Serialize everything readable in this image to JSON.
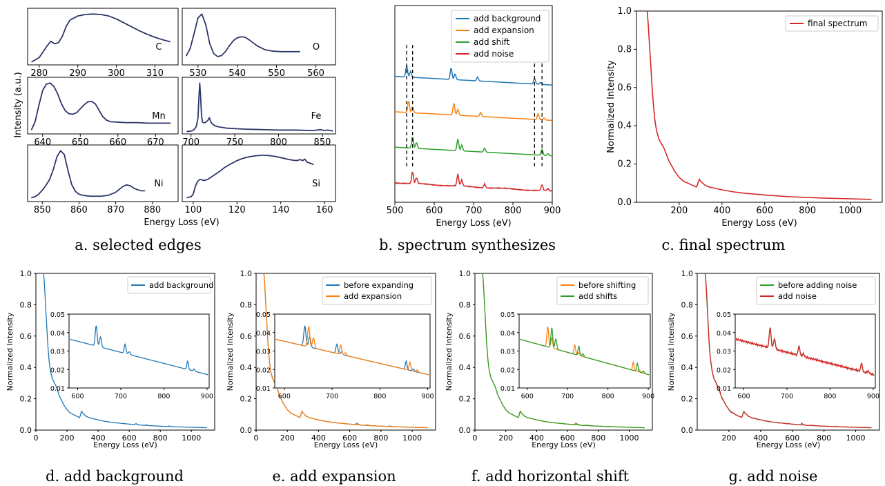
{
  "colors": {
    "navy": "#2c3468",
    "blue": "#1f77b4",
    "orange": "#ff7f0e",
    "green": "#2ca02c",
    "red": "#d62728"
  },
  "captions": {
    "a": "a. selected edges",
    "b": "b. spectrum synthesizes",
    "c": "c. final spectrum",
    "d": "d. add background",
    "e": "e. add expansion",
    "f": "f. add horizontal shift",
    "g": "g. add noise"
  },
  "chart_data": [
    {
      "id": "a",
      "type": "line",
      "title": "a. selected edges",
      "xlabel": "Energy Loss (eV)",
      "ylabel": "Intensity (a.u.)",
      "panels": [
        {
          "label": "C",
          "xlim": [
            277,
            316
          ],
          "xticks": [
            280,
            290,
            300,
            310
          ],
          "x": [
            278,
            280,
            282,
            283,
            284,
            285,
            286,
            287,
            288,
            290,
            292,
            294,
            296,
            298,
            300,
            302,
            304,
            306,
            308,
            310,
            312,
            314
          ],
          "y": [
            0.03,
            0.12,
            0.35,
            0.45,
            0.4,
            0.42,
            0.55,
            0.75,
            0.88,
            0.96,
            0.99,
            1.0,
            0.99,
            0.96,
            0.9,
            0.82,
            0.74,
            0.66,
            0.59,
            0.53,
            0.48,
            0.44
          ]
        },
        {
          "label": "O",
          "xlim": [
            526,
            565
          ],
          "xticks": [
            530,
            540,
            550,
            560
          ],
          "x": [
            527,
            528,
            529,
            530,
            531,
            532,
            533,
            534,
            535,
            536,
            537,
            538,
            539,
            540,
            541,
            542,
            543,
            545,
            547,
            549,
            551,
            553,
            555,
            556
          ],
          "y": [
            0.15,
            0.3,
            0.6,
            0.92,
            1.0,
            0.78,
            0.4,
            0.2,
            0.14,
            0.16,
            0.24,
            0.36,
            0.46,
            0.52,
            0.54,
            0.53,
            0.48,
            0.36,
            0.28,
            0.25,
            0.24,
            0.24,
            0.24,
            0.24
          ]
        },
        {
          "label": "Mn",
          "xlim": [
            636,
            676
          ],
          "xticks": [
            640,
            650,
            660,
            670
          ],
          "x": [
            637,
            638,
            639,
            640,
            641,
            642,
            643,
            644,
            645,
            646,
            647,
            648,
            649,
            650,
            651,
            652,
            653,
            654,
            655,
            656,
            657,
            658,
            660,
            662,
            665,
            668,
            671,
            674
          ],
          "y": [
            0.05,
            0.22,
            0.55,
            0.85,
            0.98,
            1.0,
            0.93,
            0.78,
            0.58,
            0.44,
            0.38,
            0.37,
            0.4,
            0.48,
            0.56,
            0.62,
            0.63,
            0.58,
            0.45,
            0.32,
            0.25,
            0.22,
            0.21,
            0.2,
            0.2,
            0.19,
            0.19,
            0.19
          ]
        },
        {
          "label": "Fe",
          "xlim": [
            690,
            865
          ],
          "xticks": [
            700,
            750,
            800,
            850
          ],
          "x": [
            695,
            700,
            703,
            706,
            708,
            709,
            710,
            711,
            712,
            713,
            714,
            716,
            719,
            721,
            722,
            724,
            726,
            730,
            740,
            760,
            780,
            800,
            820,
            840,
            848,
            852,
            856,
            862
          ],
          "y": [
            0.02,
            0.03,
            0.05,
            0.12,
            0.3,
            0.7,
            1.0,
            0.72,
            0.35,
            0.22,
            0.2,
            0.2,
            0.24,
            0.3,
            0.24,
            0.18,
            0.15,
            0.12,
            0.09,
            0.07,
            0.06,
            0.05,
            0.05,
            0.04,
            0.06,
            0.04,
            0.05,
            0.03
          ]
        },
        {
          "label": "Ni",
          "xlim": [
            846,
            887
          ],
          "xticks": [
            850,
            860,
            870,
            880
          ],
          "x": [
            847,
            848,
            849,
            850,
            851,
            852,
            853,
            854,
            855,
            856,
            857,
            858,
            859,
            860,
            861,
            862,
            863,
            864,
            866,
            868,
            870,
            871,
            872,
            873,
            874,
            875,
            876,
            877,
            878
          ],
          "y": [
            0.05,
            0.07,
            0.12,
            0.2,
            0.3,
            0.42,
            0.62,
            0.88,
            1.0,
            0.92,
            0.6,
            0.32,
            0.18,
            0.12,
            0.1,
            0.09,
            0.08,
            0.08,
            0.08,
            0.1,
            0.16,
            0.22,
            0.28,
            0.31,
            0.29,
            0.24,
            0.21,
            0.19,
            0.19
          ]
        },
        {
          "label": "Si",
          "xlim": [
            95,
            165
          ],
          "xticks": [
            100,
            120,
            140,
            160
          ],
          "x": [
            97,
            99,
            100,
            101,
            102,
            103,
            104,
            105,
            106,
            107,
            108,
            110,
            112,
            114,
            117,
            120,
            123,
            126,
            129,
            132,
            135,
            138,
            141,
            144,
            147,
            149,
            150,
            151,
            152,
            155
          ],
          "y": [
            0.05,
            0.07,
            0.12,
            0.28,
            0.38,
            0.42,
            0.41,
            0.4,
            0.41,
            0.43,
            0.46,
            0.52,
            0.58,
            0.65,
            0.73,
            0.8,
            0.85,
            0.88,
            0.9,
            0.91,
            0.9,
            0.88,
            0.85,
            0.82,
            0.8,
            0.82,
            0.8,
            0.83,
            0.77,
            0.72
          ]
        }
      ]
    },
    {
      "id": "b",
      "type": "line",
      "title": "b. spectrum synthesizes",
      "xlabel": "Energy Loss (eV)",
      "ylabel": "",
      "xlim": [
        500,
        900
      ],
      "xticks": [
        500,
        600,
        700,
        800,
        900
      ],
      "series": [
        {
          "name": "add background",
          "color": "#1f77b4",
          "offset": 0.6,
          "peaks": [
            [
              530,
              0.06
            ],
            [
              540,
              0.03
            ],
            [
              643,
              0.06
            ],
            [
              653,
              0.03
            ],
            [
              710,
              0.02
            ],
            [
              855,
              0.03
            ],
            [
              870,
              0.01
            ]
          ]
        },
        {
          "name": "add expansion",
          "color": "#ff7f0e",
          "offset": 0.42,
          "peaks": [
            [
              535,
              0.06
            ],
            [
              545,
              0.03
            ],
            [
              650,
              0.06
            ],
            [
              660,
              0.03
            ],
            [
              718,
              0.02
            ],
            [
              864,
              0.03
            ],
            [
              879,
              0.01
            ]
          ]
        },
        {
          "name": "add shift",
          "color": "#2ca02c",
          "offset": 0.24,
          "peaks": [
            [
              545,
              0.06
            ],
            [
              555,
              0.03
            ],
            [
              660,
              0.06
            ],
            [
              670,
              0.03
            ],
            [
              728,
              0.02
            ],
            [
              874,
              0.03
            ],
            [
              889,
              0.01
            ]
          ]
        },
        {
          "name": "add noise",
          "color": "#d62728",
          "offset": 0.06,
          "peaks": [
            [
              545,
              0.06
            ],
            [
              555,
              0.03
            ],
            [
              660,
              0.06
            ],
            [
              670,
              0.03
            ],
            [
              728,
              0.02
            ],
            [
              874,
              0.03
            ],
            [
              889,
              0.01
            ]
          ]
        }
      ],
      "dashed_lines_x": [
        530,
        545,
        855,
        874
      ]
    },
    {
      "id": "c",
      "type": "line",
      "title": "c. final spectrum",
      "xlabel": "Energy Loss (eV)",
      "ylabel": "Normalized Intensity",
      "xlim": [
        0,
        1150
      ],
      "ylim": [
        0,
        1.0
      ],
      "xticks": [
        200,
        400,
        600,
        800,
        1000
      ],
      "yticks": [
        0.0,
        0.2,
        0.4,
        0.6,
        0.8,
        1.0
      ],
      "series": [
        {
          "name": "final spectrum",
          "color": "#d62728",
          "x": [
            50,
            55,
            60,
            65,
            70,
            75,
            80,
            85,
            90,
            95,
            100,
            105,
            110,
            115,
            120,
            130,
            140,
            150,
            160,
            170,
            180,
            200,
            220,
            240,
            260,
            280,
            285,
            290,
            295,
            300,
            310,
            320,
            340,
            360,
            380,
            400,
            450,
            500,
            550,
            600,
            650,
            700,
            800,
            900,
            1000,
            1100
          ],
          "y": [
            1.0,
            0.93,
            0.84,
            0.75,
            0.66,
            0.57,
            0.5,
            0.44,
            0.4,
            0.37,
            0.35,
            0.33,
            0.32,
            0.31,
            0.3,
            0.28,
            0.25,
            0.22,
            0.2,
            0.18,
            0.16,
            0.13,
            0.11,
            0.1,
            0.09,
            0.08,
            0.09,
            0.11,
            0.12,
            0.11,
            0.1,
            0.09,
            0.08,
            0.075,
            0.07,
            0.065,
            0.055,
            0.048,
            0.043,
            0.038,
            0.034,
            0.03,
            0.025,
            0.021,
            0.018,
            0.015
          ]
        }
      ]
    },
    {
      "id": "d",
      "type": "line",
      "title": "d. add background",
      "xlabel": "Energy Loss (eV)",
      "ylabel": "Normalized Intensity",
      "xlim": [
        0,
        1150
      ],
      "ylim": [
        0,
        1.0
      ],
      "xticks": [
        0,
        200,
        400,
        600,
        800,
        1000
      ],
      "yticks": [
        0.0,
        0.2,
        0.4,
        0.6,
        0.8,
        1.0
      ],
      "series": [
        {
          "name": "add background",
          "color": "#1f77b4",
          "shift": 0
        }
      ],
      "inset": {
        "xlim": [
          580,
          905
        ],
        "ylim": [
          0.01,
          0.05
        ],
        "xticks": [
          600,
          700,
          800,
          900
        ],
        "yticks": [
          0.01,
          0.02,
          0.03,
          0.04,
          0.05
        ]
      }
    },
    {
      "id": "e",
      "type": "line",
      "title": "e. add expansion",
      "xlabel": "Energy Loss (eV)",
      "ylabel": "Normalized Intensity",
      "xlim": [
        0,
        1150
      ],
      "ylim": [
        0,
        1.0
      ],
      "xticks": [
        0,
        200,
        400,
        600,
        800,
        1000
      ],
      "yticks": [
        0.0,
        0.2,
        0.4,
        0.6,
        0.8,
        1.0
      ],
      "series": [
        {
          "name": "before expanding",
          "color": "#1f77b4",
          "shift": 0
        },
        {
          "name": "add expansion",
          "color": "#ff7f0e",
          "shift": 8
        }
      ],
      "inset": {
        "xlim": [
          580,
          905
        ],
        "ylim": [
          0.01,
          0.05
        ],
        "xticks": [
          600,
          700,
          800,
          900
        ],
        "yticks": [
          0.01,
          0.02,
          0.03,
          0.04,
          0.05
        ]
      }
    },
    {
      "id": "f",
      "type": "line",
      "title": "f. add horizontal shift",
      "xlabel": "Energy Loss (eV)",
      "ylabel": "Normalized Intensity",
      "xlim": [
        0,
        1150
      ],
      "ylim": [
        0,
        1.0
      ],
      "xticks": [
        0,
        200,
        400,
        600,
        800,
        1000
      ],
      "yticks": [
        0.0,
        0.2,
        0.4,
        0.6,
        0.8,
        1.0
      ],
      "series": [
        {
          "name": "before shifting",
          "color": "#ff7f0e",
          "shift": 8
        },
        {
          "name": "add shifts",
          "color": "#2ca02c",
          "shift": 18
        }
      ],
      "inset": {
        "xlim": [
          580,
          905
        ],
        "ylim": [
          0.01,
          0.05
        ],
        "xticks": [
          600,
          700,
          800,
          900
        ],
        "yticks": [
          0.01,
          0.02,
          0.03,
          0.04,
          0.05
        ]
      }
    },
    {
      "id": "g",
      "type": "line",
      "title": "g. add noise",
      "xlabel": "Energy Loss (eV)",
      "ylabel": "Normalized Intensity",
      "xlim": [
        0,
        1150
      ],
      "ylim": [
        0,
        1.0
      ],
      "xticks": [
        200,
        400,
        600,
        800,
        1000
      ],
      "yticks": [
        0.0,
        0.2,
        0.4,
        0.6,
        0.8,
        1.0
      ],
      "series": [
        {
          "name": "before adding noise",
          "color": "#2ca02c",
          "shift": 18
        },
        {
          "name": "add noise",
          "color": "#d62728",
          "shift": 18,
          "noise": true
        }
      ],
      "inset": {
        "xlim": [
          580,
          905
        ],
        "ylim": [
          0.01,
          0.05
        ],
        "xticks": [
          600,
          700,
          800,
          900
        ],
        "yticks": [
          0.01,
          0.02,
          0.03,
          0.04,
          0.05
        ]
      }
    }
  ]
}
